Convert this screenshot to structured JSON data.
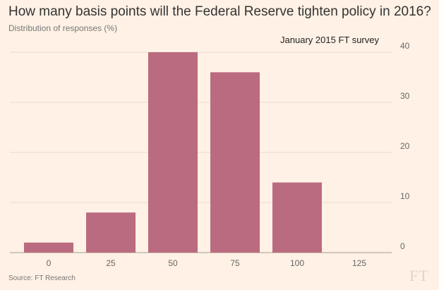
{
  "chart_data": {
    "type": "bar",
    "title": "How many basis points will the Federal Reserve tighten policy in 2016?",
    "subtitle": "Distribution of responses (%)",
    "annotation": "January 2015 FT survey",
    "source": "Source: FT Research",
    "logo": "FT",
    "categories": [
      "0",
      "25",
      "50",
      "75",
      "100",
      "125"
    ],
    "values": [
      2,
      8,
      40,
      36,
      14,
      0
    ],
    "ylim": [
      0,
      40
    ],
    "yticks": [
      0,
      10,
      20,
      30,
      40
    ],
    "xlabel": "",
    "ylabel": "",
    "grid": true,
    "bar_color": "#bb6b7f"
  }
}
